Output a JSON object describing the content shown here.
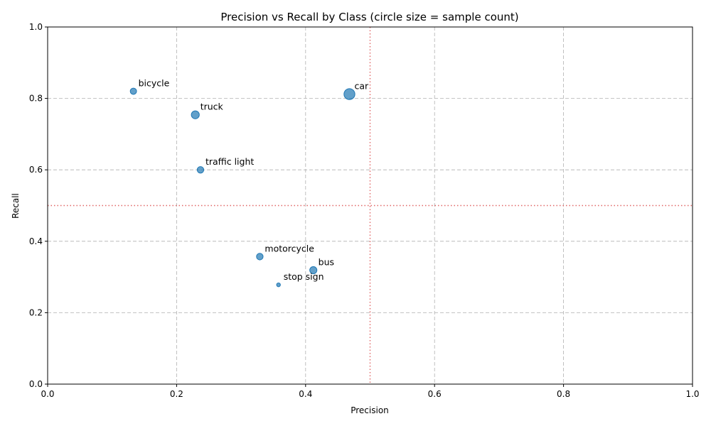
{
  "chart_data": {
    "type": "scatter",
    "title": "Precision vs Recall by Class (circle size = sample count)",
    "xlabel": "Precision",
    "ylabel": "Recall",
    "xlim": [
      0,
      1
    ],
    "ylim": [
      0,
      1
    ],
    "x_ticks": [
      "0.0",
      "0.2",
      "0.4",
      "0.6",
      "0.8",
      "1.0"
    ],
    "y_ticks": [
      "0.0",
      "0.2",
      "0.4",
      "0.6",
      "0.8",
      "1.0"
    ],
    "grid": true,
    "reference_lines": {
      "x": 0.5,
      "y": 0.5,
      "color": "#e06666",
      "style": "dotted"
    },
    "marker_color": "#1f77b4",
    "points": [
      {
        "label": "bicycle",
        "x": 0.133,
        "y": 0.82,
        "size": 50
      },
      {
        "label": "car",
        "x": 0.468,
        "y": 0.812,
        "size": 150
      },
      {
        "label": "truck",
        "x": 0.229,
        "y": 0.754,
        "size": 80
      },
      {
        "label": "traffic light",
        "x": 0.237,
        "y": 0.6,
        "size": 55
      },
      {
        "label": "motorcycle",
        "x": 0.329,
        "y": 0.357,
        "size": 55
      },
      {
        "label": "bus",
        "x": 0.412,
        "y": 0.319,
        "size": 65
      },
      {
        "label": "stop sign",
        "x": 0.358,
        "y": 0.278,
        "size": 18
      }
    ]
  }
}
